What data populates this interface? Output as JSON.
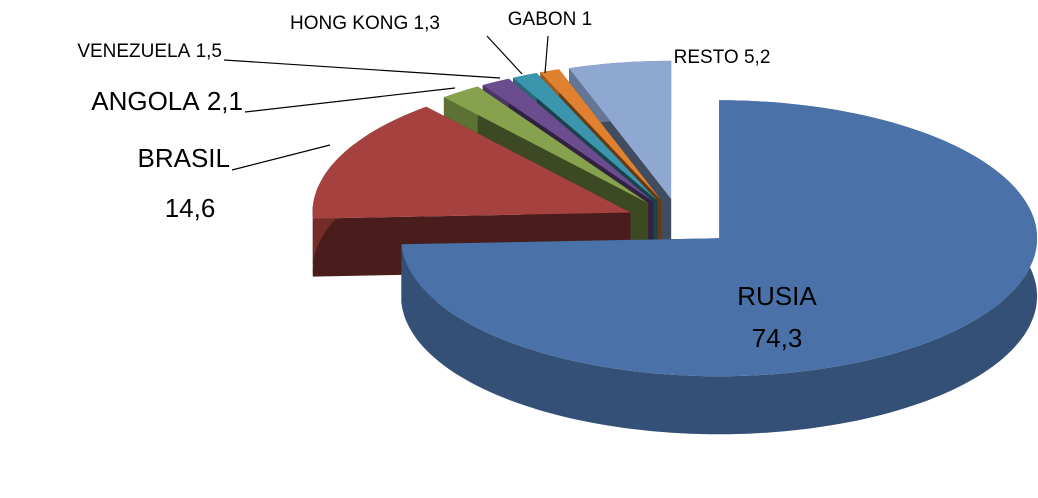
{
  "chart_data": {
    "type": "pie",
    "categories": [
      "RUSIA",
      "BRASIL",
      "ANGOLA",
      "VENEZUELA",
      "HONG KONG",
      "GABON",
      "RESTO"
    ],
    "values": [
      74.3,
      14.6,
      2.1,
      1.5,
      1.3,
      1,
      5.2
    ],
    "value_labels": [
      "74,3",
      "14,6",
      "2,1",
      "1,5",
      "1,3",
      "1",
      "5,2"
    ],
    "colors": [
      "#4a72a8",
      "#a5413e",
      "#86a24c",
      "#6b4c8e",
      "#3a95ad",
      "#e0812f",
      "#8fa8d2"
    ]
  }
}
